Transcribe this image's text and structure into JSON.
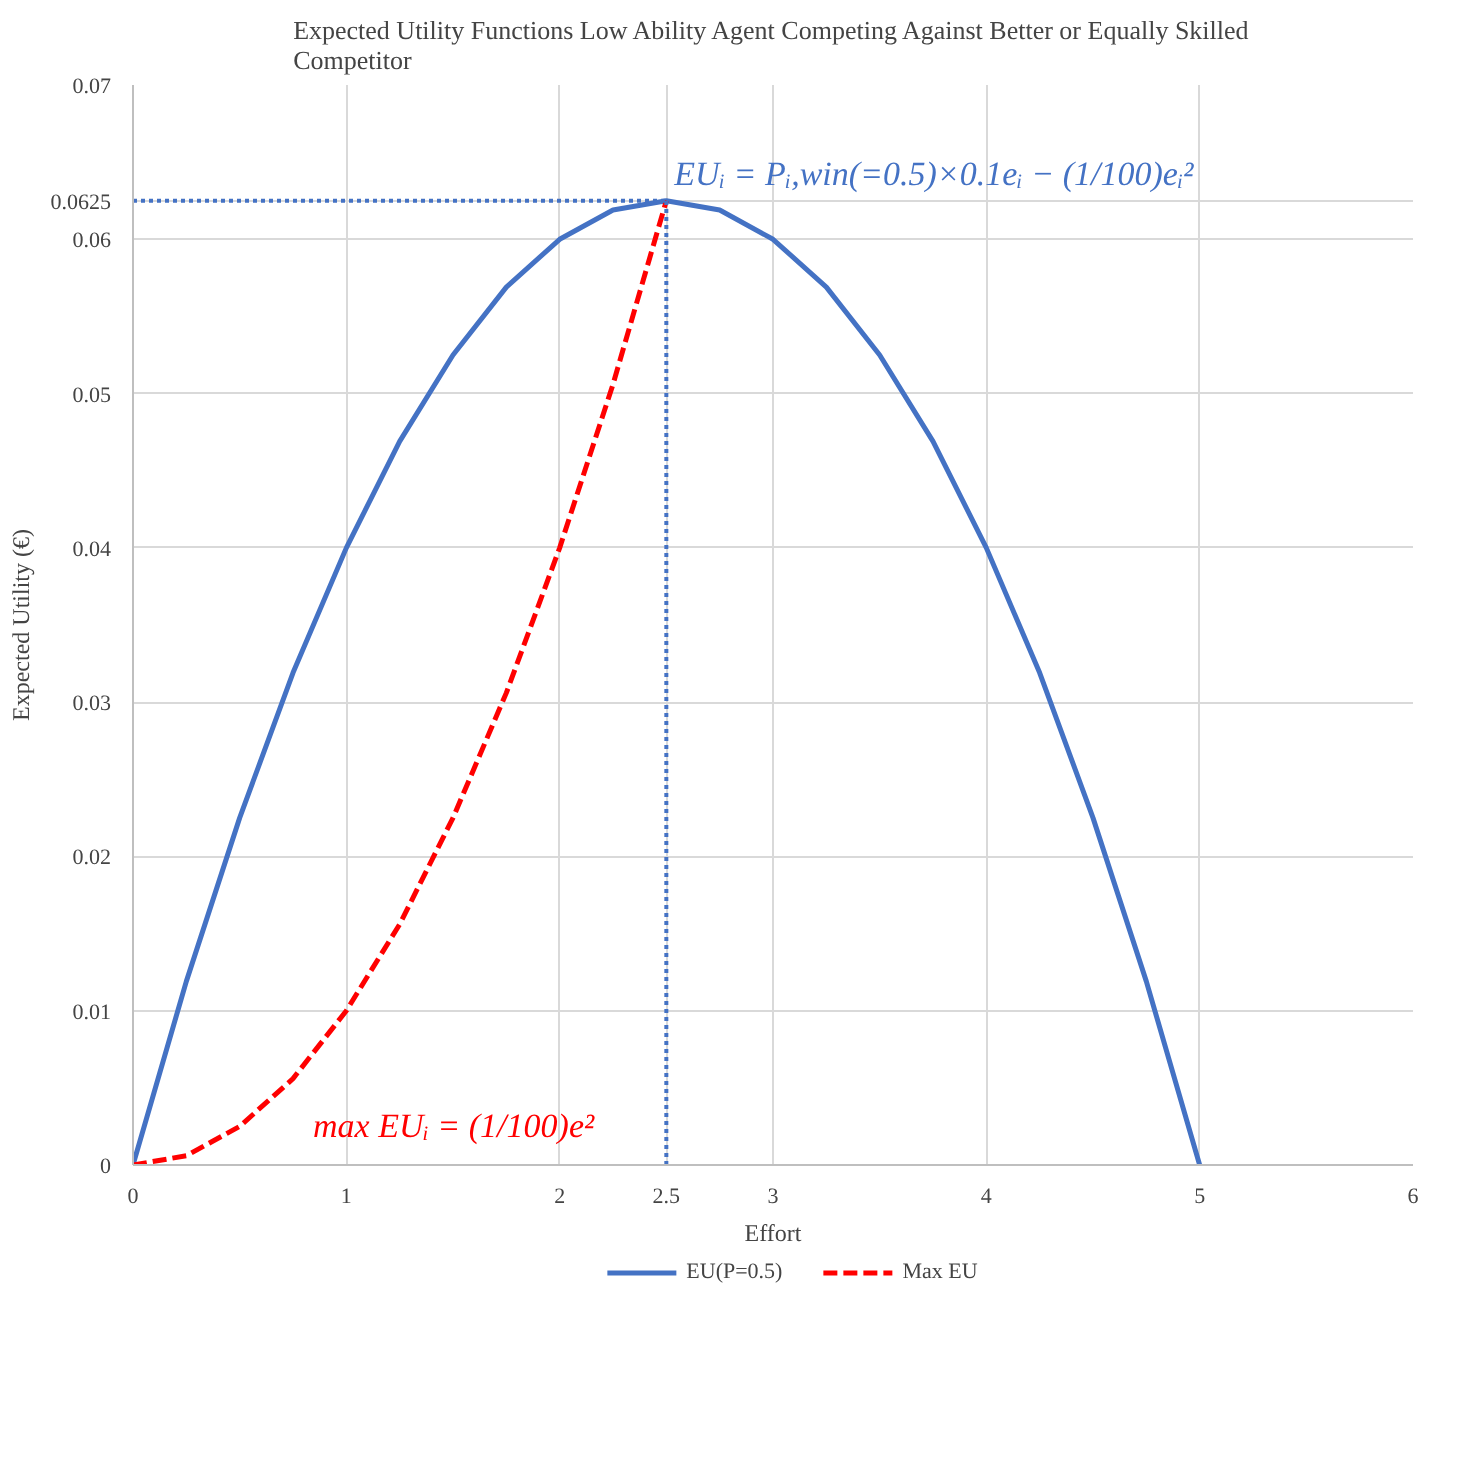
{
  "chart_data": {
    "type": "line",
    "title": "Expected Utility Functions Low Ability Agent Competing Against Better or Equally Skilled\nCompetitor",
    "xlabel": "Effort",
    "ylabel": "Expected Utility (€)",
    "xlim": [
      0,
      6
    ],
    "ylim": [
      0,
      0.07
    ],
    "xticks": [
      0,
      1,
      2,
      2.5,
      3,
      4,
      5,
      6
    ],
    "yticks": [
      0,
      0.01,
      0.02,
      0.03,
      0.04,
      0.05,
      0.06,
      0.0625,
      0.07
    ],
    "grid": true,
    "legend": "bottom",
    "marker": "none",
    "series": [
      {
        "name": "EU(P=0.5)",
        "color": "#4472c4",
        "line_style": "solid",
        "x": [
          0,
          0.25,
          0.5,
          0.75,
          1,
          1.25,
          1.5,
          1.75,
          2,
          2.25,
          2.5,
          2.75,
          3,
          3.25,
          3.5,
          3.75,
          4,
          4.25,
          4.5,
          4.75,
          5
        ],
        "values": [
          0,
          0.0119,
          0.0225,
          0.0319,
          0.04,
          0.0469,
          0.0525,
          0.0569,
          0.06,
          0.0619,
          0.0625,
          0.0619,
          0.06,
          0.0569,
          0.0525,
          0.0469,
          0.04,
          0.0319,
          0.0225,
          0.0119,
          0
        ]
      },
      {
        "name": "Max EU",
        "color": "#ff0000",
        "line_style": "dashed",
        "x": [
          0,
          0.25,
          0.5,
          0.75,
          1,
          1.25,
          1.5,
          1.75,
          2,
          2.25,
          2.5
        ],
        "values": [
          0,
          0.0006,
          0.0025,
          0.0056,
          0.01,
          0.0156,
          0.0225,
          0.0306,
          0.04,
          0.0506,
          0.0625
        ]
      }
    ],
    "ref_lines": [
      {
        "axis": "y",
        "value": 0.0625,
        "color": "#4472c4",
        "line_style": "dotted"
      },
      {
        "axis": "x",
        "value": 2.5,
        "color": "#4472c4",
        "line_style": "dotted"
      }
    ],
    "annotations": [
      "EUᵢ = Pᵢ,win(=0.5)×0.1eᵢ − (1/100)eᵢ²",
      "max EUᵢ = (1/100)e²"
    ]
  }
}
